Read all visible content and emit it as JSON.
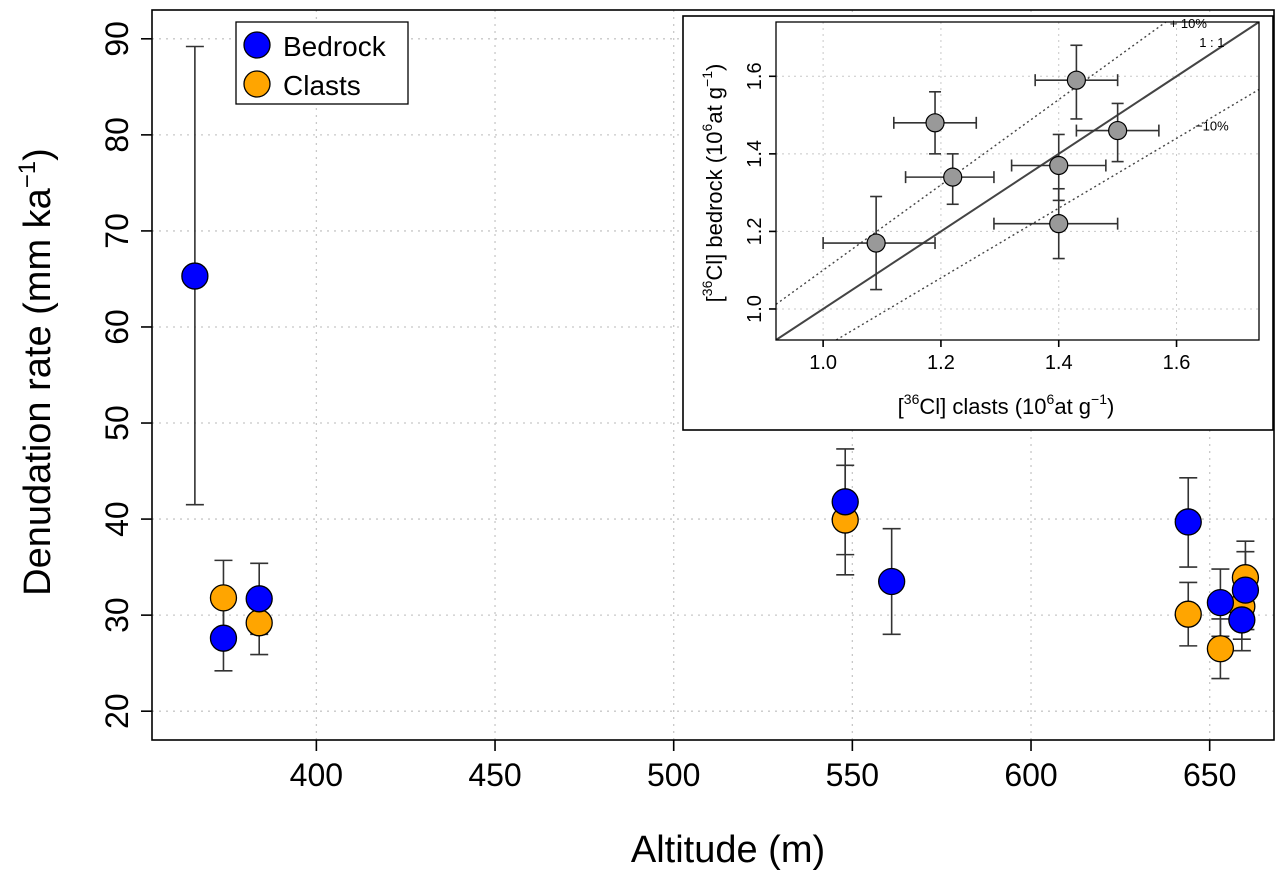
{
  "chart_data": [
    {
      "type": "scatter",
      "title": "",
      "xlabel": "Altitude (m)",
      "ylabel": "Denudation rate (mm ka",
      "ylabel_sup": "−1",
      "ylabel_close": ")",
      "xlim": [
        354,
        668
      ],
      "ylim": [
        17,
        93
      ],
      "xticks": [
        400,
        450,
        500,
        550,
        600,
        650
      ],
      "yticks": [
        20,
        30,
        40,
        50,
        60,
        70,
        80,
        90
      ],
      "grid": true,
      "legend": "top-left",
      "series": [
        {
          "name": "Bedrock",
          "color": "#0000ff",
          "points": [
            {
              "x": 366,
              "y": 65.3,
              "ylo": 41.5,
              "yhi": 89.2
            },
            {
              "x": 374,
              "y": 27.6,
              "ylo": 24.2,
              "yhi": 31.0
            },
            {
              "x": 384,
              "y": 31.7,
              "ylo": 28.0,
              "yhi": 35.4
            },
            {
              "x": 548,
              "y": 41.8,
              "ylo": 36.3,
              "yhi": 47.3
            },
            {
              "x": 561,
              "y": 33.5,
              "ylo": 28.0,
              "yhi": 39.0
            },
            {
              "x": 644,
              "y": 39.7,
              "ylo": 35.0,
              "yhi": 44.3
            },
            {
              "x": 653,
              "y": 31.3,
              "ylo": 27.8,
              "yhi": 34.8
            },
            {
              "x": 659,
              "y": 29.5,
              "ylo": 26.3,
              "yhi": 32.7
            },
            {
              "x": 660,
              "y": 32.6,
              "ylo": 28.5,
              "yhi": 36.6
            }
          ]
        },
        {
          "name": "Clasts",
          "color": "#ffa500",
          "points": [
            {
              "x": 374,
              "y": 31.8,
              "ylo": 28.0,
              "yhi": 35.7
            },
            {
              "x": 384,
              "y": 29.2,
              "ylo": 25.9,
              "yhi": 32.5
            },
            {
              "x": 548,
              "y": 39.9,
              "ylo": 34.2,
              "yhi": 45.6
            },
            {
              "x": 644,
              "y": 30.1,
              "ylo": 26.8,
              "yhi": 33.4
            },
            {
              "x": 653,
              "y": 26.5,
              "ylo": 23.4,
              "yhi": 29.6
            },
            {
              "x": 659,
              "y": 30.9,
              "ylo": 27.5,
              "yhi": 34.3
            },
            {
              "x": 660,
              "y": 33.9,
              "ylo": 30.1,
              "yhi": 37.7
            }
          ]
        }
      ]
    },
    {
      "type": "scatter",
      "title": "",
      "xlabel": "[ Cl] clasts (10 at g",
      "ylabel": "[ Cl] bedrock (10 at g",
      "label_sup_isotope": "36",
      "label_sup_power": "6",
      "label_sup_unit": "−1",
      "xlim": [
        0.92,
        1.74
      ],
      "ylim": [
        0.92,
        1.74
      ],
      "xticks": [
        1.0,
        1.2,
        1.4,
        1.6
      ],
      "yticks": [
        1.0,
        1.2,
        1.4,
        1.6
      ],
      "tick_labels": [
        "1.0",
        "1.2",
        "1.4",
        "1.6"
      ],
      "grid": true,
      "point_color": "#999999",
      "lines": [
        {
          "label": "+ 10%",
          "factor": 1.1,
          "style": "dotted"
        },
        {
          "label": "1 : 1",
          "factor": 1.0,
          "style": "solid"
        },
        {
          "label": "−10%",
          "factor": 0.9,
          "style": "dotted"
        }
      ],
      "points": [
        {
          "x": 1.09,
          "xlo": 1.0,
          "xhi": 1.19,
          "y": 1.17,
          "ylo": 1.05,
          "yhi": 1.29
        },
        {
          "x": 1.19,
          "xlo": 1.12,
          "xhi": 1.26,
          "y": 1.48,
          "ylo": 1.4,
          "yhi": 1.56
        },
        {
          "x": 1.22,
          "xlo": 1.14,
          "xhi": 1.29,
          "y": 1.34,
          "ylo": 1.27,
          "yhi": 1.4
        },
        {
          "x": 1.43,
          "xlo": 1.36,
          "xhi": 1.5,
          "y": 1.59,
          "ylo": 1.49,
          "yhi": 1.68
        },
        {
          "x": 1.4,
          "xlo": 1.32,
          "xhi": 1.48,
          "y": 1.37,
          "ylo": 1.28,
          "yhi": 1.45
        },
        {
          "x": 1.5,
          "xlo": 1.43,
          "xhi": 1.57,
          "y": 1.46,
          "ylo": 1.38,
          "yhi": 1.53
        },
        {
          "x": 1.4,
          "xlo": 1.29,
          "xhi": 1.5,
          "y": 1.22,
          "ylo": 1.13,
          "yhi": 1.31
        }
      ]
    }
  ]
}
